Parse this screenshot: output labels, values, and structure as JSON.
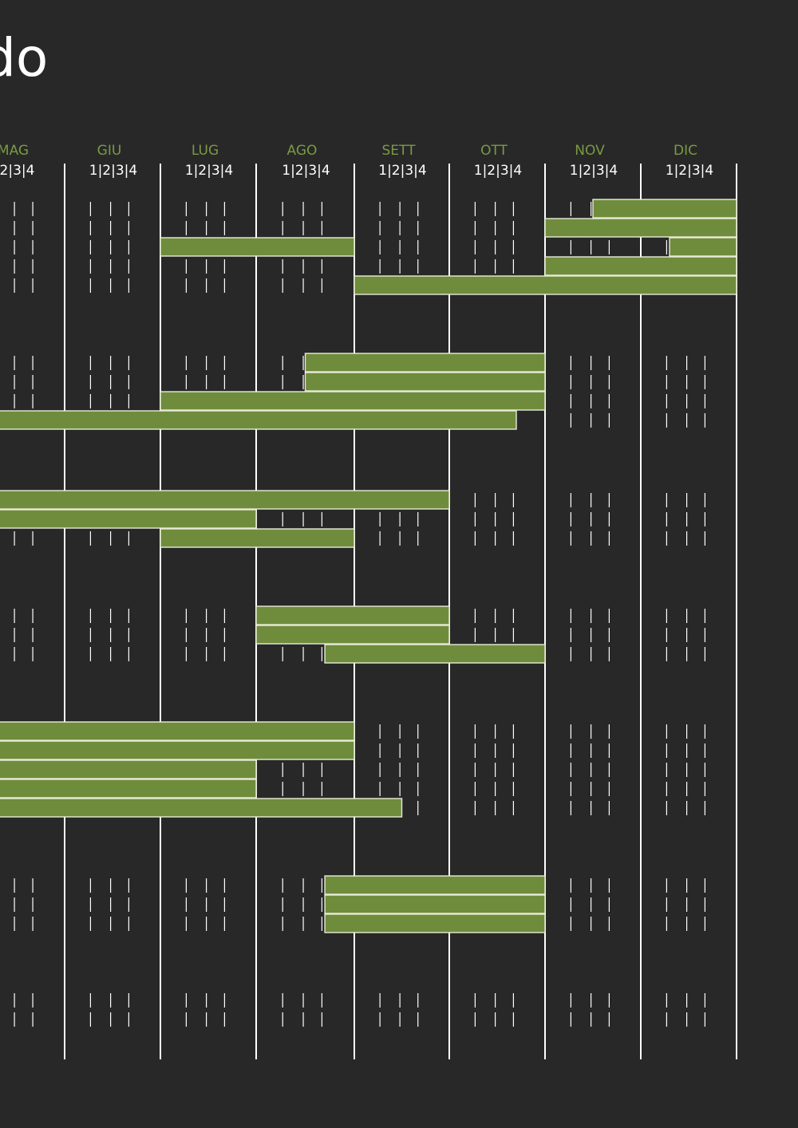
{
  "title": "do",
  "chart_data": {
    "type": "gantt",
    "months": [
      {
        "label": "MAG",
        "weeks": "2|3|4"
      },
      {
        "label": "GIU",
        "weeks": "1|2|3|4"
      },
      {
        "label": "LUG",
        "weeks": "1|2|3|4"
      },
      {
        "label": "AGO",
        "weeks": "1|2|3|4"
      },
      {
        "label": "SETT",
        "weeks": "1|2|3|4"
      },
      {
        "label": "OTT",
        "weeks": "1|2|3|4"
      },
      {
        "label": "NOV",
        "weeks": "1|2|3|4"
      },
      {
        "label": "DIC",
        "weeks": "1|2|3|4"
      }
    ],
    "groups": [
      {
        "rows": 5,
        "tasks": [
          {
            "row": 0,
            "start": 6.5,
            "end": 8
          },
          {
            "row": 1,
            "start": 6,
            "end": 8
          },
          {
            "row": 2,
            "start": 7.3,
            "end": 8
          },
          {
            "row": 3,
            "start": 6,
            "end": 8
          },
          {
            "row": 4,
            "start": 4,
            "end": 8
          },
          {
            "row": 2,
            "start": 2,
            "end": 4
          }
        ]
      },
      {
        "rows": 4,
        "tasks": [
          {
            "row": 0,
            "start": 3.5,
            "end": 6
          },
          {
            "row": 1,
            "start": 3.5,
            "end": 6
          },
          {
            "row": 2,
            "start": 2,
            "end": 6
          },
          {
            "row": 3,
            "start": 0,
            "end": 5.7
          }
        ]
      },
      {
        "rows": 3,
        "tasks": [
          {
            "row": 0,
            "start": 0,
            "end": 5
          },
          {
            "row": 1,
            "start": 0,
            "end": 3
          },
          {
            "row": 2,
            "start": 2,
            "end": 4
          }
        ]
      },
      {
        "rows": 3,
        "tasks": [
          {
            "row": 0,
            "start": 3,
            "end": 5
          },
          {
            "row": 1,
            "start": 3,
            "end": 5
          },
          {
            "row": 2,
            "start": 3.7,
            "end": 6
          }
        ]
      },
      {
        "rows": 5,
        "tasks": [
          {
            "row": 0,
            "start": 0,
            "end": 4
          },
          {
            "row": 1,
            "start": 0,
            "end": 4
          },
          {
            "row": 2,
            "start": 0,
            "end": 3
          },
          {
            "row": 3,
            "start": 0,
            "end": 3
          },
          {
            "row": 4,
            "start": 0,
            "end": 4.5
          }
        ]
      },
      {
        "rows": 3,
        "tasks": [
          {
            "row": 0,
            "start": 3.7,
            "end": 6
          },
          {
            "row": 1,
            "start": 3.7,
            "end": 6
          },
          {
            "row": 2,
            "start": 3.7,
            "end": 6
          }
        ]
      },
      {
        "rows": 2,
        "tasks": []
      }
    ],
    "colors": {
      "bar": "#6f8c3c",
      "month_label": "#7a9a44",
      "background": "#282828"
    }
  }
}
